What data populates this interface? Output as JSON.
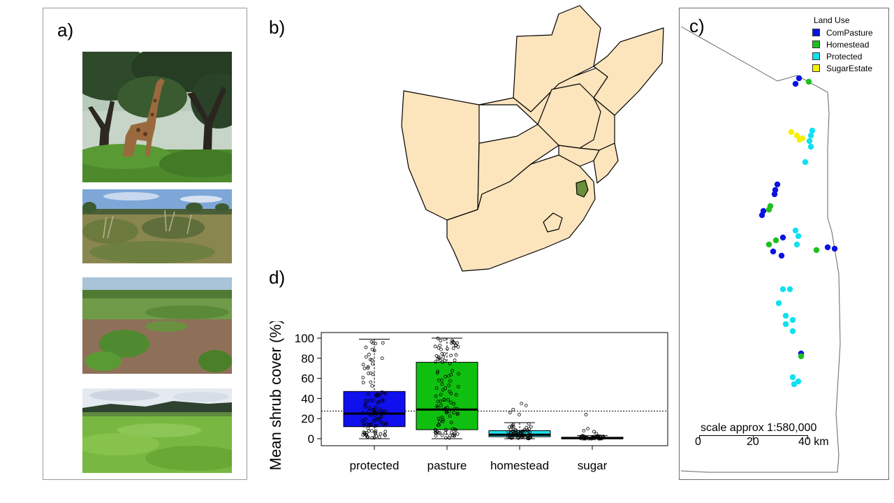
{
  "panels": {
    "a": {
      "label": "a)"
    },
    "b": {
      "label": "b)"
    },
    "c": {
      "label": "c)"
    },
    "d": {
      "label": "d)"
    }
  },
  "photos": [
    {
      "subject": "giraffe-woodland",
      "colors": {
        "sky": "#c9d6c8",
        "canopy": "#2f4a2a",
        "ground": "#4f8a2c"
      }
    },
    {
      "subject": "shrub-grassland",
      "colors": {
        "sky": "#7ea7d8",
        "canopy": "#5f6e3b",
        "ground": "#8f8b55"
      }
    },
    {
      "subject": "homestead-garden",
      "colors": {
        "sky": "#a9c4d9",
        "canopy": "#4e7a33",
        "ground": "#8a6e55"
      }
    },
    {
      "subject": "sugarcane-field",
      "colors": {
        "sky": "#e8edf2",
        "canopy": "#3d5a3a",
        "ground": "#6fae3a"
      }
    }
  ],
  "map_b": {
    "land_color": "#fce4bc",
    "highlight_color": "#6b8e3a",
    "highlight_region": "eswatini"
  },
  "map_c": {
    "legend": {
      "title": "Land Use",
      "items": [
        {
          "label": "ComPasture",
          "color": "#0a14e0"
        },
        {
          "label": "Homestead",
          "color": "#1fbf1f"
        },
        {
          "label": "Protected",
          "color": "#10e0ef"
        },
        {
          "label": "SugarEstate",
          "color": "#f5f000"
        }
      ]
    },
    "scale": {
      "text": "scale approx 1:580,000",
      "ticks": [
        "0",
        "20",
        "40 km"
      ]
    }
  },
  "chart_data": {
    "type": "box",
    "ylabel": "Mean shrub cover (%)",
    "categories": [
      "protected",
      "pasture",
      "homestead",
      "sugar"
    ],
    "colors": [
      "#1010ee",
      "#10c010",
      "#20e0ee",
      "#101010"
    ],
    "yticks": [
      "0",
      "20",
      "40",
      "60",
      "80",
      "100"
    ],
    "ylim": [
      0,
      100
    ],
    "reference_line": 27.5,
    "boxes": [
      {
        "min": 0,
        "q1": 12,
        "median": 25,
        "q3": 47,
        "max": 99
      },
      {
        "min": 0,
        "q1": 9,
        "median": 29,
        "q3": 76,
        "max": 100
      },
      {
        "min": 0,
        "q1": 2,
        "median": 4,
        "q3": 8,
        "max": 16
      },
      {
        "min": 0,
        "q1": 0,
        "median": 0.5,
        "q3": 1.5,
        "max": 3
      }
    ],
    "outliers": [
      {
        "category": "homestead",
        "values": [
          24,
          26,
          29,
          33,
          35
        ]
      },
      {
        "category": "sugar",
        "values": [
          5,
          7,
          8,
          10,
          24
        ]
      }
    ]
  }
}
